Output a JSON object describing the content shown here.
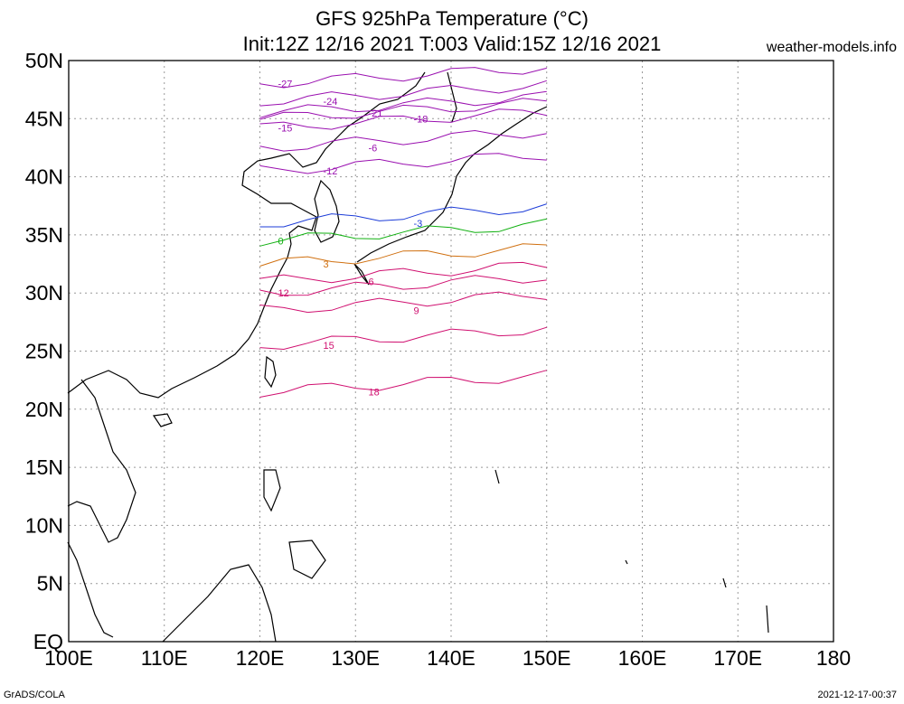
{
  "header": {
    "title_line1": "GFS 925hPa Temperature (°C)",
    "title_line2": "Init:12Z 12/16 2021 T:003 Valid:15Z 12/16 2021",
    "site": "weather-models.info"
  },
  "footer": {
    "left": "GrADS/COLA",
    "right": "2021-12-17-00:37"
  },
  "map": {
    "lon_range": [
      100,
      180
    ],
    "lat_range": [
      0,
      50
    ],
    "lon_ticks": [
      "100E",
      "110E",
      "120E",
      "130E",
      "140E",
      "150E",
      "160E",
      "170E",
      "180"
    ],
    "lat_ticks": [
      "EQ",
      "5N",
      "10N",
      "15N",
      "20N",
      "25N",
      "30N",
      "35N",
      "40N",
      "45N",
      "50N"
    ],
    "data_domain": {
      "lon": [
        120,
        150
      ],
      "lat": [
        21,
        50
      ]
    },
    "contours": [
      {
        "label": "-27",
        "color": "#9a10b0"
      },
      {
        "label": "-24",
        "color": "#9a10b0"
      },
      {
        "label": "-21",
        "color": "#9a10b0"
      },
      {
        "label": "-18",
        "color": "#9a10b0"
      },
      {
        "label": "-15",
        "color": "#9a10b0"
      },
      {
        "label": "-12",
        "color": "#9a10b0"
      },
      {
        "label": "-6",
        "color": "#9a10b0"
      },
      {
        "label": "-3",
        "color": "#1c3cd8"
      },
      {
        "label": "0",
        "color": "#10b010"
      },
      {
        "label": "3",
        "color": "#d07010"
      },
      {
        "label": "6",
        "color": "#d01070"
      },
      {
        "label": "9",
        "color": "#d01070"
      },
      {
        "label": "12",
        "color": "#d01070"
      },
      {
        "label": "15",
        "color": "#d01070"
      },
      {
        "label": "18",
        "color": "#d01070"
      }
    ]
  }
}
